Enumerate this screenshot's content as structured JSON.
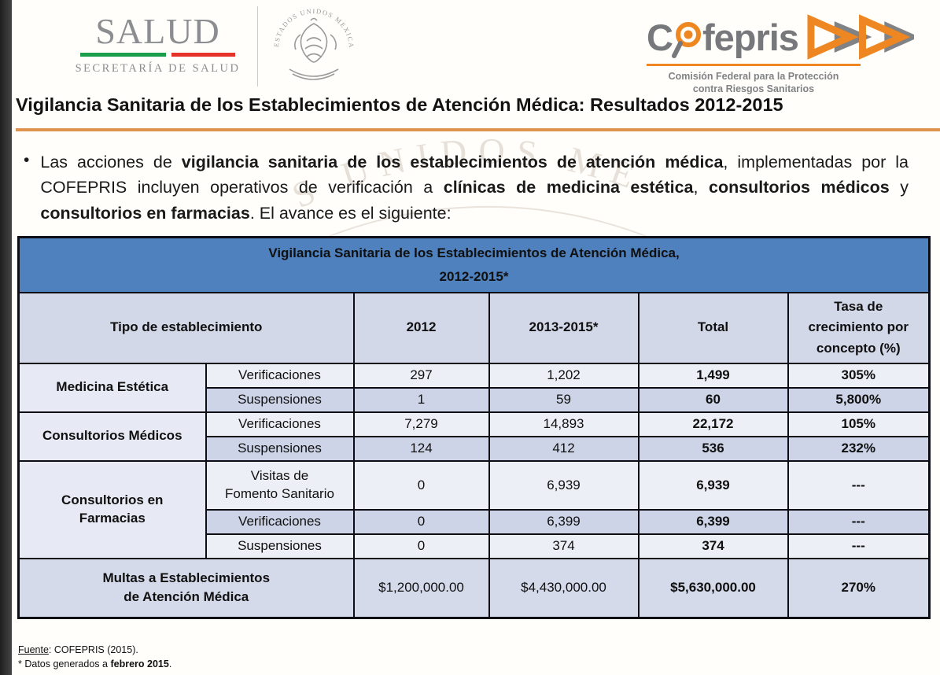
{
  "header": {
    "salud": {
      "wordmark": "SALUD",
      "subtitle": "SECRETARÍA DE SALUD"
    },
    "seal": {
      "arc_text": "ESTADOS UNIDOS MEXICANOS"
    },
    "cofepris": {
      "wordmark_c": "C",
      "wordmark_rest": "fepris",
      "tagline_line1": "Comisión Federal para la Protección",
      "tagline_line2": "contra Riesgos Sanitarios"
    }
  },
  "title": "Vigilancia Sanitaria de los Establecimientos de Atención Médica: Resultados 2012-2015",
  "intro": {
    "bullet": "•",
    "segments": [
      {
        "text": "Las acciones de ",
        "bold": false
      },
      {
        "text": "vigilancia sanitaria de los establecimientos de atención médica",
        "bold": true
      },
      {
        "text": ", implementadas por la COFEPRIS incluyen operativos de verificación a ",
        "bold": false
      },
      {
        "text": "clínicas de medicina estética",
        "bold": true
      },
      {
        "text": ", ",
        "bold": false
      },
      {
        "text": "consultorios médicos",
        "bold": true
      },
      {
        "text": " y ",
        "bold": false
      },
      {
        "text": "consultorios en farmacias",
        "bold": true
      },
      {
        "text": ". El avance es el siguiente:",
        "bold": false
      }
    ]
  },
  "table": {
    "title_line1": "Vigilancia Sanitaria de los Establecimientos de Atención Médica,",
    "title_line2": "2012-2015*",
    "columns": [
      "Tipo de establecimiento",
      "2012",
      "2013-2015*",
      "Total",
      "Tasa de\ncrecimiento por\nconcepto (%)"
    ],
    "groups": [
      {
        "name": "Medicina Estética",
        "rows": [
          {
            "concept": "Verificaciones",
            "v2012": "297",
            "v2013_2015": "1,202",
            "total": "1,499",
            "growth": "305%"
          },
          {
            "concept": "Suspensiones",
            "v2012": "1",
            "v2013_2015": "59",
            "total": "60",
            "growth": "5,800%"
          }
        ]
      },
      {
        "name": "Consultorios Médicos",
        "rows": [
          {
            "concept": "Verificaciones",
            "v2012": "7,279",
            "v2013_2015": "14,893",
            "total": "22,172",
            "growth": "105%"
          },
          {
            "concept": "Suspensiones",
            "v2012": "124",
            "v2013_2015": "412",
            "total": "536",
            "growth": "232%"
          }
        ]
      },
      {
        "name": "Consultorios en\nFarmacias",
        "rows": [
          {
            "concept": "Visitas de\nFomento Sanitario",
            "v2012": "0",
            "v2013_2015": "6,939",
            "total": "6,939",
            "growth": "---"
          },
          {
            "concept": "Verificaciones",
            "v2012": "0",
            "v2013_2015": "6,399",
            "total": "6,399",
            "growth": "---"
          },
          {
            "concept": "Suspensiones",
            "v2012": "0",
            "v2013_2015": "374",
            "total": "374",
            "growth": "---"
          }
        ]
      }
    ],
    "summary_row": {
      "label": "Multas a Establecimientos\nde Atención Médica",
      "v2012": "$1,200,000.00",
      "v2013_2015": "$4,430,000.00",
      "total": "$5,630,000.00",
      "growth": "270%"
    }
  },
  "footnotes": {
    "source_label": "Fuente",
    "source_rest": ": COFEPRIS (2015).",
    "note_prefix": "* Datos generados a ",
    "note_bold": "febrero 2015",
    "note_suffix": "."
  },
  "watermark": {
    "arc_text": "S UNIDOS ME"
  },
  "colors": {
    "table_header_blue": "#4e81bd",
    "column_header_light": "#d3d8e9",
    "row_light": "#edeff7",
    "row_shaded": "#cdd4e7",
    "group_cell": "#e7eaf4",
    "summary_row": "#d4daea",
    "title_rule_orange": "#e0924f",
    "cofepris_orange": "#ee8722",
    "logo_gray": "#77787b",
    "salud_gray": "#8b8d90",
    "mex_green": "#1a9e4b",
    "mex_red": "#e5332a"
  }
}
